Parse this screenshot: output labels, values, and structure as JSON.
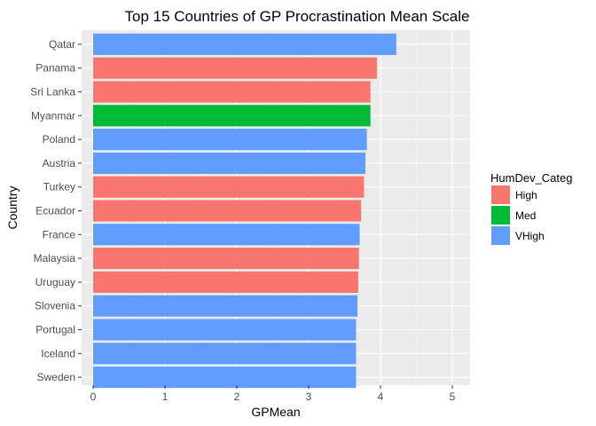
{
  "chart_data": {
    "type": "bar",
    "orientation": "horizontal",
    "title": "Top 15 Countries of GP Procrastination Mean Scale",
    "xlabel": "GPMean",
    "ylabel": "Country",
    "xlim": [
      0,
      5
    ],
    "xticks": [
      0,
      1,
      2,
      3,
      4,
      5
    ],
    "grid": true,
    "legend_position": "right",
    "legend": {
      "title": "HumDev_Categ",
      "entries": [
        {
          "name": "High",
          "color": "#F8766D"
        },
        {
          "name": "Med",
          "color": "#00BA38"
        },
        {
          "name": "VHigh",
          "color": "#619CFF"
        }
      ]
    },
    "categories": [
      "Qatar",
      "Panama",
      "Sri Lanka",
      "Myanmar",
      "Poland",
      "Austria",
      "Turkey",
      "Ecuador",
      "France",
      "Malaysia",
      "Uruguay",
      "Slovenia",
      "Portugal",
      "Iceland",
      "Sweden"
    ],
    "values": [
      4.22,
      3.95,
      3.86,
      3.86,
      3.81,
      3.79,
      3.77,
      3.73,
      3.71,
      3.7,
      3.69,
      3.68,
      3.66,
      3.66,
      3.66
    ],
    "groups": [
      "VHigh",
      "High",
      "High",
      "Med",
      "VHigh",
      "VHigh",
      "High",
      "High",
      "VHigh",
      "High",
      "High",
      "VHigh",
      "VHigh",
      "VHigh",
      "VHigh"
    ]
  }
}
